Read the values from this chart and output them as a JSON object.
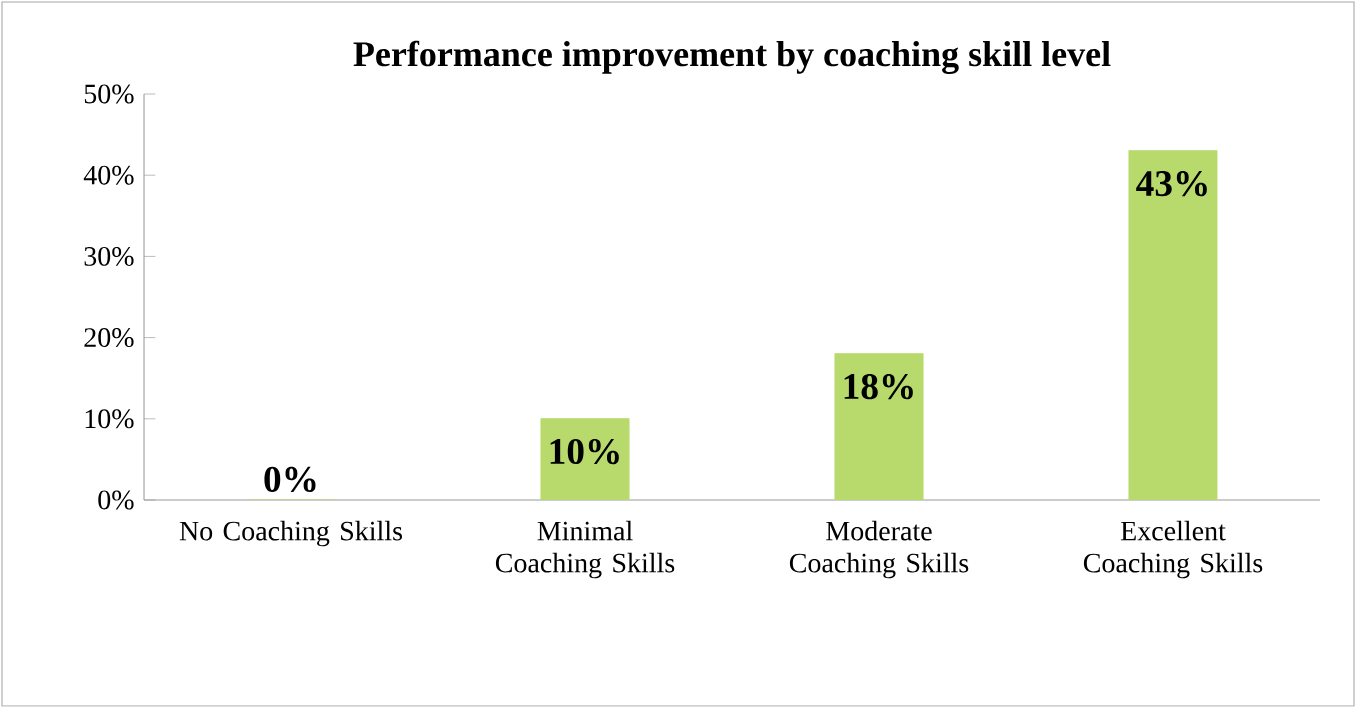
{
  "chart_data": {
    "type": "bar",
    "title": "Performance improvement by coaching skill level",
    "categories": [
      "No Coaching Skills",
      "Minimal Coaching Skills",
      "Moderate Coaching Skills",
      "Excellent Coaching Skills"
    ],
    "values": [
      0,
      10,
      18,
      43
    ],
    "color": "#b8da6c",
    "value_labels": [
      "0%",
      "10%",
      "18%",
      "43%"
    ],
    "ylim": [
      0,
      50
    ],
    "yticks": [
      {
        "value": 0,
        "label": "0%"
      },
      {
        "value": 10,
        "label": "10%"
      },
      {
        "value": 20,
        "label": "20%"
      },
      {
        "value": 30,
        "label": "30%"
      },
      {
        "value": 40,
        "label": "40%"
      },
      {
        "value": 50,
        "label": "50%"
      }
    ]
  }
}
